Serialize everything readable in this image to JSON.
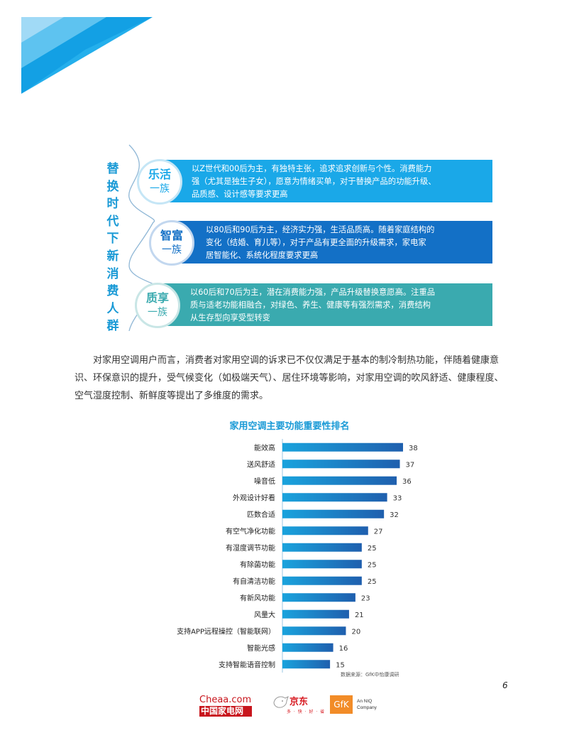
{
  "infographic": {
    "vertical_title": [
      "替",
      "换",
      "时",
      "代",
      "下",
      "新",
      "消",
      "费",
      "人",
      "群"
    ],
    "groups": [
      {
        "name_line1": "乐活",
        "name_line2": "一族",
        "lines": [
          "以Z世代和00后为主，有独特主张，追求追求创新与个性。消费能力",
          "强（尤其是独生子女），愿意为情绪买单，对于替换产品的功能升级、",
          "品质感、设计感等要求更高"
        ],
        "color": "#1aa8e8"
      },
      {
        "name_line1": "智富",
        "name_line2": "一族",
        "lines": [
          "以80后和90后为主，经济实力强，生活品质高。随着家庭结构的",
          "变化（结婚、育儿等），对于产品有更全面的升级需求，家电家",
          "居智能化、系统化程度要求更高"
        ],
        "color": "#1370c6"
      },
      {
        "name_line1": "质享",
        "name_line2": "一族",
        "lines": [
          "以60后和70后为主，潜在消费能力强，产品升级替换意愿高。注重品",
          "质与适老功能相融合，对绿色、养生、健康等有强烈需求，消费结构",
          "从生存型向享受型转变"
        ],
        "color": "#3aaaaf"
      }
    ]
  },
  "paragraph": "对家用空调用户而言，消费者对家用空调的诉求已不仅仅满足于基本的制冷制热功能，伴随着健康意识、环保意识的提升，受气候变化（如极端天气）、居住环境等影响，对家用空调的吹风舒适、健康程度、空气湿度控制、新鲜度等提出了多维度的需求。",
  "chart_data": {
    "type": "bar",
    "orientation": "horizontal",
    "title": "家用空调主要功能重要性排名",
    "categories": [
      "能效高",
      "送风舒适",
      "噪音低",
      "外观设计好看",
      "匹数合适",
      "有空气净化功能",
      "有湿度调节功能",
      "有除菌功能",
      "有自清洁功能",
      "有新风功能",
      "风量大",
      "支持APP远程操控（智能联网）",
      "智能光感",
      "支持智能语音控制"
    ],
    "values": [
      38,
      37,
      36,
      33,
      32,
      27,
      25,
      25,
      25,
      23,
      21,
      20,
      16,
      15
    ],
    "xlim": [
      0,
      40
    ],
    "colors": [
      "#1aa3dd",
      "#1f5fae"
    ],
    "grid": false,
    "data_labels": true
  },
  "source_note": "数据来源：GfK中怡康调研",
  "page_number": "6",
  "footer": {
    "cheaa_top": "Cheaa.com",
    "cheaa_bottom": "中国家电网",
    "jd_name": "京东",
    "jd_slogan": "多 · 快 · 好 · 省",
    "gfk_name": "GfK",
    "gfk_tag_line1": "An NIQ",
    "gfk_tag_line2": "Company"
  }
}
